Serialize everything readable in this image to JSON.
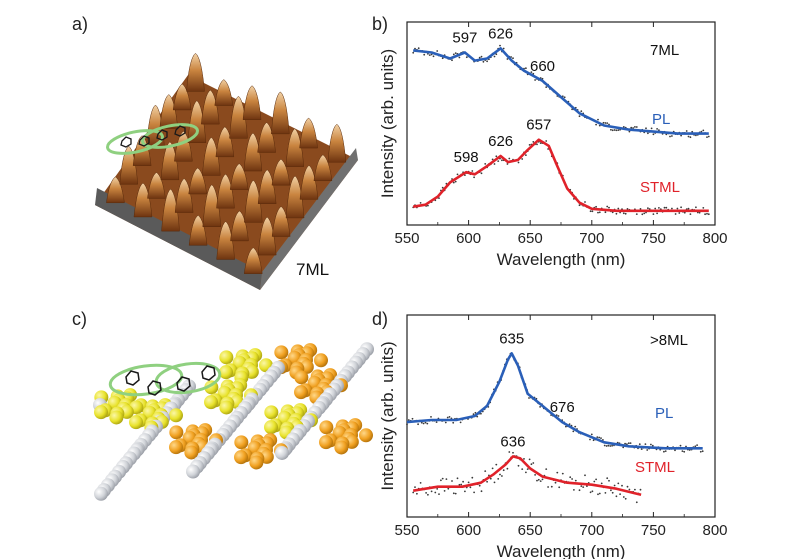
{
  "panels": {
    "a": {
      "label": "a)",
      "image_label": "7ML"
    },
    "c": {
      "label": "c)"
    }
  },
  "colors": {
    "pl": "#2a5fb8",
    "stml": "#e0222a",
    "raw": "#3a3a3a",
    "outline": "#8fd080"
  },
  "chart_data": [
    {
      "panel": "b)",
      "type": "line",
      "xlabel": "Wavelength (nm)",
      "ylabel": "Intensity (arb. units)",
      "xlim": [
        550,
        800
      ],
      "ylim": [
        0,
        1
      ],
      "xticks": [
        550,
        600,
        650,
        700,
        750,
        800
      ],
      "annotation": "7ML",
      "series": [
        {
          "name": "PL",
          "color": "#2a5fb8",
          "x": [
            555,
            570,
            585,
            597,
            605,
            615,
            626,
            635,
            645,
            660,
            675,
            690,
            710,
            730,
            750,
            770,
            795
          ],
          "y": [
            0.86,
            0.85,
            0.82,
            0.85,
            0.81,
            0.82,
            0.87,
            0.81,
            0.76,
            0.71,
            0.63,
            0.55,
            0.49,
            0.47,
            0.46,
            0.45,
            0.45
          ],
          "peaks": [
            597,
            626,
            660
          ]
        },
        {
          "name": "STML",
          "color": "#e0222a",
          "x": [
            555,
            565,
            575,
            585,
            598,
            605,
            615,
            626,
            632,
            640,
            648,
            657,
            665,
            672,
            680,
            690,
            700,
            720,
            740,
            760,
            780,
            795
          ],
          "y": [
            0.09,
            0.1,
            0.14,
            0.21,
            0.26,
            0.25,
            0.29,
            0.34,
            0.31,
            0.32,
            0.37,
            0.42,
            0.39,
            0.29,
            0.18,
            0.11,
            0.08,
            0.07,
            0.07,
            0.07,
            0.07,
            0.07
          ],
          "peaks": [
            598,
            626,
            657
          ]
        }
      ]
    },
    {
      "panel": "d)",
      "type": "line",
      "xlabel": "Wavelength (nm)",
      "ylabel": "Intensity (arb. units)",
      "xlim": [
        550,
        800
      ],
      "ylim": [
        0,
        1
      ],
      "xticks": [
        550,
        600,
        650,
        700,
        750,
        800
      ],
      "annotation": ">8ML",
      "series": [
        {
          "name": "PL",
          "color": "#2a5fb8",
          "x": [
            550,
            570,
            590,
            605,
            615,
            625,
            632,
            635,
            640,
            648,
            660,
            676,
            690,
            710,
            730,
            760,
            790
          ],
          "y": [
            0.47,
            0.48,
            0.48,
            0.5,
            0.55,
            0.67,
            0.78,
            0.81,
            0.75,
            0.61,
            0.55,
            0.47,
            0.42,
            0.37,
            0.35,
            0.34,
            0.34
          ],
          "peaks": [
            635,
            676
          ]
        },
        {
          "name": "STML",
          "color": "#e0222a",
          "x": [
            555,
            575,
            595,
            610,
            620,
            630,
            636,
            642,
            650,
            660,
            680,
            700,
            720,
            740
          ],
          "y": [
            0.13,
            0.15,
            0.15,
            0.17,
            0.21,
            0.26,
            0.3,
            0.29,
            0.24,
            0.2,
            0.17,
            0.16,
            0.14,
            0.11
          ],
          "peaks": [
            636
          ]
        }
      ]
    }
  ]
}
